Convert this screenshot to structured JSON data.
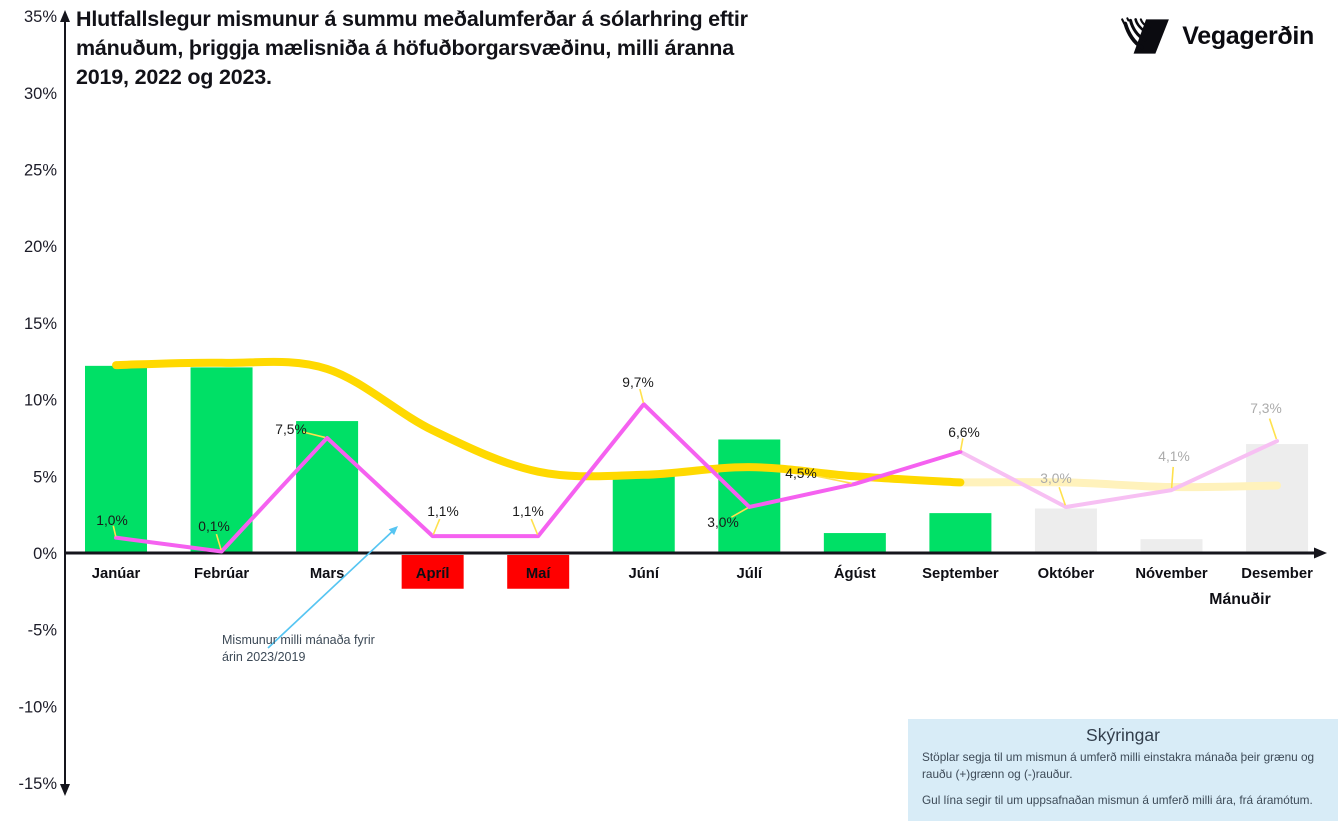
{
  "header": {
    "title_lines": [
      "Hlutfallslegur mismunur á summu meðalumferðar á sólarhring eftir",
      "mánuðum, þriggja mælisniða á höfuðborgarsvæðinu, milli áranna",
      "2019, 2022 og 2023."
    ],
    "logo_text": "Vegagerðin"
  },
  "annotation": {
    "text": "Mismunur milli mánaða fyrir\nárin 2023/2019",
    "arrow_color": "#56c5f2"
  },
  "legend_box": {
    "title": "Skýringar",
    "line1": "Stöplar segja til um mismun á umferð milli einstakra mánaða  þeir grænu og rauðu (+)grænn og (-)rauður.",
    "line2": "Gul lína segir til um uppsafnaðan mismun á umferð milli ára, frá áramótum.",
    "background": "#d8ecf7"
  },
  "colors": {
    "bar_positive": "#00e066",
    "bar_negative": "#ff0000",
    "bar_forecast": "#ededed",
    "line_monthly": "#f561f0",
    "line_monthly_faded": "#f7c0f3",
    "line_cumulative": "#ffd900",
    "line_cumulative_faded": "#fff2bc",
    "leader": "#ffe14d",
    "label_dark": "#1a1a1a",
    "label_gray": "#ababab",
    "axis": "#15151c",
    "legend_background": "#d8ecf7",
    "legend_text": "#3d4a57"
  },
  "chart_data": {
    "type": "combo",
    "title": "Hlutfallslegur mismunur á summu meðalumferðar á sólarhring eftir mánuðum, þriggja mælisniða á höfuðborgarsvæðinu, milli áranna 2019, 2022 og 2023.",
    "xlabel": "Mánuðir",
    "ylabel": "",
    "ylim": [
      -15,
      35
    ],
    "ytick_step": 5,
    "ytick_labels": [
      "35%",
      "30%",
      "25%",
      "20%",
      "15%",
      "10%",
      "5%",
      "0%",
      "-5%",
      "-10%",
      "-15%"
    ],
    "grid": false,
    "categories": [
      "Janúar",
      "Febrúar",
      "Mars",
      "Apríl",
      "Maí",
      "Júní",
      "Júlí",
      "Ágúst",
      "September",
      "Október",
      "Nóvember",
      "Desember"
    ],
    "series": [
      {
        "name": "monthly_difference_bars",
        "kind": "bar",
        "values": [
          12.2,
          12.1,
          8.6,
          -2.2,
          -2.2,
          5.1,
          7.4,
          1.3,
          2.6,
          2.9,
          0.9,
          7.1
        ],
        "bar_colors": [
          "#00e066",
          "#00e066",
          "#00e066",
          "#ff0000",
          "#ff0000",
          "#00e066",
          "#00e066",
          "#00e066",
          "#00e066",
          "#ededed",
          "#ededed",
          "#ededed"
        ]
      },
      {
        "name": "monthly_difference_line_2023_2019",
        "kind": "line",
        "color": "#f561f0",
        "faded_color": "#f7c0f3",
        "faded_from_index": 8,
        "values": [
          1.0,
          0.1,
          7.5,
          1.1,
          1.1,
          9.7,
          3.0,
          4.5,
          6.6,
          3.0,
          4.1,
          7.3
        ],
        "point_labels": [
          "1,0%",
          "0,1%",
          "7,5%",
          "1,1%",
          "1,1%",
          "9,7%",
          "3,0%",
          "4,5%",
          "6,6%",
          "3,0%",
          "4,1%",
          "7,3%"
        ]
      },
      {
        "name": "cumulative_difference_line",
        "kind": "line",
        "smooth": true,
        "color": "#ffd900",
        "faded_color": "#fff2bc",
        "faded_from_index": 8,
        "values": [
          12.25,
          12.4,
          12.0,
          8.0,
          5.3,
          5.1,
          5.6,
          5.0,
          4.6,
          4.6,
          4.3,
          4.4
        ]
      }
    ]
  }
}
